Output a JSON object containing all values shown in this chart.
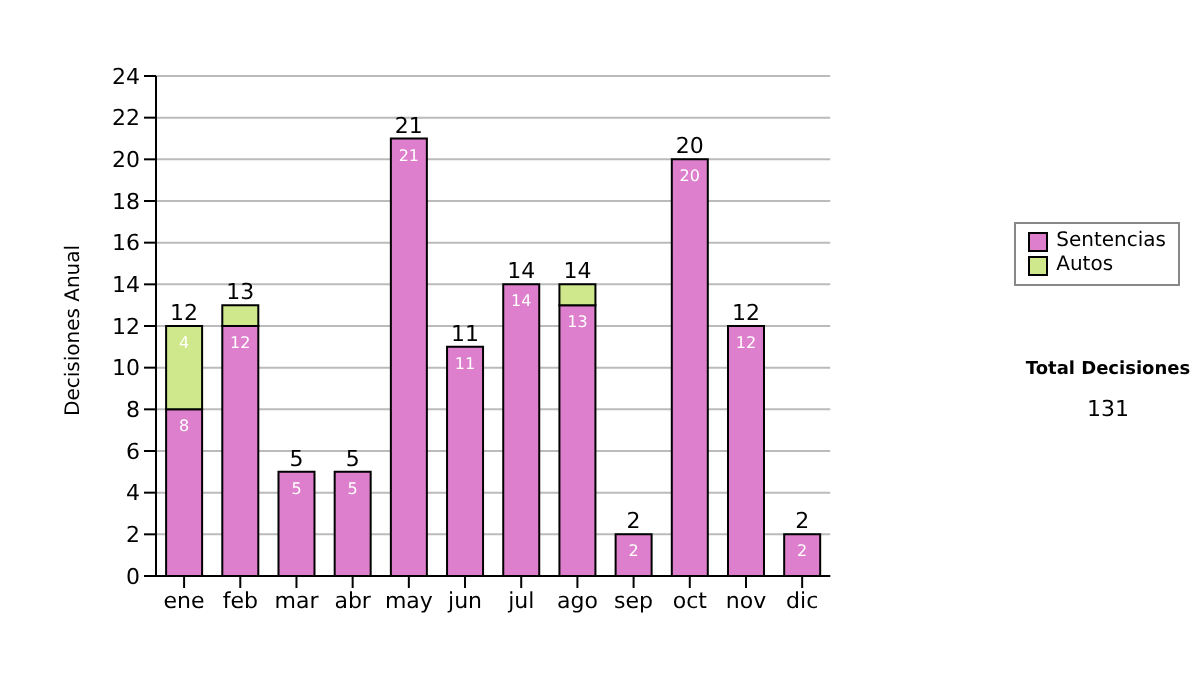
{
  "chart_data": {
    "type": "bar",
    "stacked": true,
    "ylabel": "Decisiones Anual",
    "categories": [
      "ene",
      "feb",
      "mar",
      "abr",
      "may",
      "jun",
      "jul",
      "ago",
      "sep",
      "oct",
      "nov",
      "dic"
    ],
    "series": [
      {
        "name": "Sentencias",
        "color": "#dd7fcc",
        "values": [
          8,
          12,
          5,
          5,
          21,
          11,
          14,
          13,
          2,
          20,
          12,
          2
        ],
        "value_labels": [
          "8",
          "12",
          "5",
          "5",
          "21",
          "11",
          "14",
          "13",
          "2",
          "20",
          "12",
          "2"
        ]
      },
      {
        "name": "Autos",
        "color": "#cfe88c",
        "values": [
          4,
          1,
          0,
          0,
          0,
          0,
          0,
          1,
          0,
          0,
          0,
          0
        ],
        "value_labels": [
          "4",
          null,
          null,
          null,
          null,
          null,
          null,
          null,
          null,
          null,
          null,
          null
        ]
      }
    ],
    "totals": [
      "12",
      "13",
      "5",
      "5",
      "21",
      "11",
      "14",
      "14",
      "2",
      "20",
      "12",
      "2"
    ],
    "ylim": [
      0,
      24
    ],
    "yticks": [
      0,
      2,
      4,
      6,
      8,
      10,
      12,
      14,
      16,
      18,
      20,
      22,
      24
    ],
    "grid": "y",
    "legend": "right",
    "annotations": [
      "Total Decisiones",
      "131"
    ]
  }
}
